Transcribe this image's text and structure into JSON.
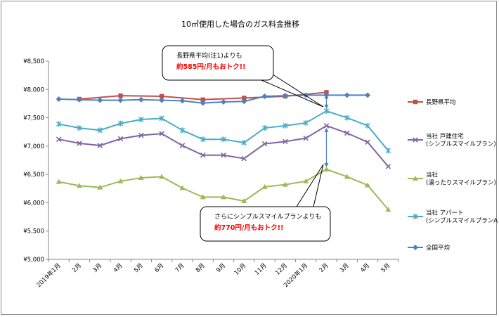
{
  "chart_data": {
    "type": "line",
    "title": "10㎥使用した場合のガス料金推移",
    "categories": [
      "2019年1月",
      "2月",
      "3月",
      "4月",
      "5月",
      "6月",
      "7月",
      "8月",
      "9月",
      "10月",
      "11月",
      "12月",
      "2020年1月",
      "2月",
      "3月",
      "4月",
      "5月"
    ],
    "ylim": [
      5000,
      8500
    ],
    "yticks": [
      5000,
      5500,
      6000,
      6500,
      7000,
      7500,
      8000,
      8500
    ],
    "ytick_labels": [
      "¥5,000",
      "¥5,500",
      "¥6,000",
      "¥6,500",
      "¥7,000",
      "¥7,500",
      "¥8,000",
      "¥8,500"
    ],
    "grid": false,
    "legend_position": "right",
    "series": [
      {
        "name": "長野県平均",
        "color": "#c0504d",
        "marker": "square",
        "values": [
          null,
          7830,
          null,
          7890,
          null,
          7880,
          null,
          7820,
          null,
          7850,
          null,
          7880,
          null,
          7950,
          null,
          null,
          null
        ]
      },
      {
        "name": "当社 戸建住宅 (シンプルスマイルプラン)",
        "label_lines": [
          "当社 戸建住宅",
          "(シンプルスマイルプラン)"
        ],
        "color": "#8064a2",
        "marker": "x",
        "values": [
          7120,
          7050,
          7010,
          7130,
          7190,
          7220,
          7010,
          6840,
          6840,
          6780,
          7040,
          7080,
          7140,
          7360,
          7230,
          7070,
          6640
        ]
      },
      {
        "name": "当社 (湯ったりスマイルプラン)",
        "label_lines": [
          "当社",
          "(湯ったりスマイルプラン)"
        ],
        "color": "#9bbb59",
        "marker": "triangle",
        "values": [
          6370,
          6300,
          6270,
          6380,
          6440,
          6460,
          6260,
          6100,
          6100,
          6030,
          6280,
          6320,
          6380,
          6590,
          6460,
          6310,
          5880
        ]
      },
      {
        "name": "当社 アパート (シンプルスマイルプランAP)",
        "label_lines": [
          "当社 アパート",
          "(シンプルスマイルプランAP)"
        ],
        "color": "#4bacc6",
        "marker": "star",
        "values": [
          7390,
          7320,
          7280,
          7400,
          7470,
          7490,
          7280,
          7120,
          7120,
          7060,
          7320,
          7360,
          7410,
          7620,
          7500,
          7360,
          6920
        ]
      },
      {
        "name": "全国平均",
        "color": "#4f81bd",
        "marker": "diamond",
        "values": [
          7830,
          7820,
          7810,
          7810,
          7820,
          7810,
          7800,
          7760,
          7780,
          7790,
          7880,
          7890,
          7900,
          7900,
          7900,
          7900,
          null
        ]
      }
    ],
    "annotations": [
      {
        "lines": [
          "長野県平均(注1)よりも"
        ],
        "highlight": "約585円/月もおトク!!"
      },
      {
        "lines": [
          "さらにシンプルスマイルプランよりも"
        ],
        "highlight": "約770円/月もおトク!!"
      }
    ]
  }
}
